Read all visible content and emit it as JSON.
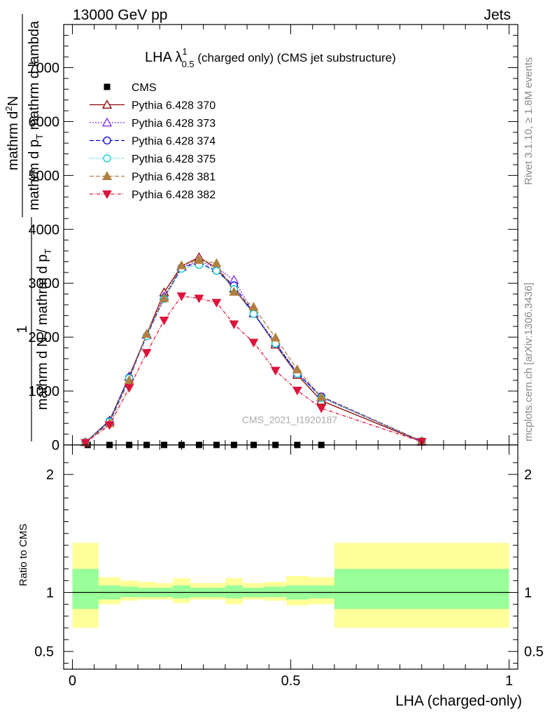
{
  "header": {
    "energy": "13000 GeV pp",
    "category": "Jets"
  },
  "side_text": {
    "rivet": "Rivet 3.1.10, ≥ 1.8M events",
    "site": "mcplots.cern.ch [arXiv:1306.3436]"
  },
  "watermark": "CMS_2021_I1920187",
  "chart_data": [
    {
      "type": "line",
      "title": {
        "main": "LHA λ",
        "sup": "1",
        "sub": "0.5",
        "rest": " (charged only) (CMS jet substructure)"
      },
      "ylabel": {
        "one": "1",
        "den": "mathrm d N / mathrm d p",
        "den_sub": "T",
        "num_top": "mathrm d",
        "num_sup": "2",
        "num_n": "N",
        "num_bottom": "mathrm d p",
        "num_bottom_sub": "T",
        "num_bottom_rest": " mathrm d lambda"
      },
      "xlim": [
        -0.02,
        1.02
      ],
      "ylim": [
        0,
        7800
      ],
      "yticks": [
        0,
        1000,
        2000,
        3000,
        4000,
        5000,
        6000,
        7000
      ],
      "ytick_labels": [
        "0",
        "1000",
        "2000",
        "3000",
        "4000",
        "5000",
        "6000",
        "7000"
      ],
      "legend_position": "top-left",
      "series": [
        {
          "name": "CMS",
          "color": "#000000",
          "marker": "square",
          "dash": "",
          "x": [
            0.035,
            0.085,
            0.13,
            0.17,
            0.21,
            0.25,
            0.29,
            0.33,
            0.37,
            0.415,
            0.465,
            0.515,
            0.57
          ],
          "y": [
            0,
            0,
            0,
            0,
            0,
            0,
            0,
            0,
            0,
            0,
            0,
            0,
            0
          ]
        },
        {
          "name": "Pythia 6.428 370",
          "color": "#8b0000",
          "marker": "triangle-open",
          "dash": "",
          "x": [
            0.03,
            0.085,
            0.13,
            0.17,
            0.21,
            0.25,
            0.29,
            0.33,
            0.37,
            0.415,
            0.465,
            0.515,
            0.57,
            0.8
          ],
          "y": [
            50,
            450,
            1270,
            2050,
            2830,
            3320,
            3480,
            3280,
            2900,
            2440,
            1860,
            1300,
            820,
            60
          ]
        },
        {
          "name": "Pythia 6.428 373",
          "color": "#8a2be2",
          "marker": "triangle-open",
          "dash": "2,2",
          "x": [
            0.03,
            0.085,
            0.13,
            0.17,
            0.21,
            0.25,
            0.29,
            0.33,
            0.37,
            0.415,
            0.465,
            0.515,
            0.57,
            0.8
          ],
          "y": [
            50,
            430,
            1260,
            2040,
            2760,
            3300,
            3410,
            3290,
            3060,
            2450,
            1900,
            1340,
            880,
            60
          ]
        },
        {
          "name": "Pythia 6.428 374",
          "color": "#0000cd",
          "marker": "circle-open",
          "dash": "6,3",
          "x": [
            0.03,
            0.085,
            0.13,
            0.17,
            0.21,
            0.25,
            0.29,
            0.33,
            0.37,
            0.415,
            0.465,
            0.515,
            0.57,
            0.8
          ],
          "y": [
            50,
            440,
            1250,
            2020,
            2720,
            3290,
            3380,
            3230,
            2960,
            2440,
            1880,
            1330,
            900,
            70
          ]
        },
        {
          "name": "Pythia 6.428 375",
          "color": "#00ced1",
          "marker": "circle-open",
          "dash": "1,2",
          "x": [
            0.03,
            0.085,
            0.13,
            0.17,
            0.21,
            0.25,
            0.29,
            0.33,
            0.37,
            0.415,
            0.465,
            0.515,
            0.57,
            0.8
          ],
          "y": [
            50,
            430,
            1240,
            2020,
            2710,
            3270,
            3340,
            3230,
            2890,
            2430,
            1880,
            1320,
            870,
            70
          ]
        },
        {
          "name": "Pythia 6.428 381",
          "color": "#b08040",
          "marker": "triangle-filled",
          "dash": "6,3",
          "x": [
            0.03,
            0.085,
            0.13,
            0.17,
            0.21,
            0.25,
            0.29,
            0.33,
            0.37,
            0.415,
            0.465,
            0.515,
            0.57,
            0.8
          ],
          "y": [
            50,
            400,
            1200,
            2060,
            2720,
            3330,
            3430,
            3370,
            2840,
            2560,
            1990,
            1400,
            890,
            70
          ]
        },
        {
          "name": "Pythia 6.428 382",
          "color": "#dc143c",
          "marker": "triangle-down-filled",
          "dash": "5,2,1,2",
          "x": [
            0.03,
            0.085,
            0.13,
            0.17,
            0.21,
            0.25,
            0.29,
            0.33,
            0.37,
            0.415,
            0.465,
            0.515,
            0.57,
            0.8
          ],
          "y": [
            40,
            370,
            1060,
            1710,
            2310,
            2760,
            2720,
            2640,
            2240,
            1900,
            1380,
            1010,
            680,
            60
          ]
        }
      ]
    },
    {
      "type": "area",
      "ylabel": "Ratio to CMS",
      "xlabel": "LHA (charged-only)",
      "xlim": [
        -0.02,
        1.02
      ],
      "ylim": [
        0.35,
        2.25
      ],
      "yticks": [
        0.5,
        1,
        2
      ],
      "ytick_labels": [
        "0.5",
        "1",
        "2"
      ],
      "xticks": [
        0,
        0.5,
        1
      ],
      "xtick_labels": [
        "0",
        "0.5",
        "1"
      ],
      "reference_line": 1,
      "bands": {
        "bins": [
          [
            0,
            0.06
          ],
          [
            0.06,
            0.11
          ],
          [
            0.11,
            0.15
          ],
          [
            0.15,
            0.19
          ],
          [
            0.19,
            0.23
          ],
          [
            0.23,
            0.27
          ],
          [
            0.27,
            0.31
          ],
          [
            0.31,
            0.35
          ],
          [
            0.35,
            0.39
          ],
          [
            0.39,
            0.44
          ],
          [
            0.44,
            0.49
          ],
          [
            0.49,
            0.54
          ],
          [
            0.54,
            0.6
          ],
          [
            0.6,
            1.0
          ]
        ],
        "yellow": [
          [
            0.7,
            1.42
          ],
          [
            0.9,
            1.13
          ],
          [
            0.93,
            1.1
          ],
          [
            0.94,
            1.09
          ],
          [
            0.94,
            1.08
          ],
          [
            0.91,
            1.12
          ],
          [
            0.94,
            1.08
          ],
          [
            0.94,
            1.08
          ],
          [
            0.9,
            1.12
          ],
          [
            0.94,
            1.08
          ],
          [
            0.93,
            1.09
          ],
          [
            0.89,
            1.14
          ],
          [
            0.9,
            1.13
          ],
          [
            0.7,
            1.42
          ]
        ],
        "green": [
          [
            0.86,
            1.2
          ],
          [
            0.94,
            1.06
          ],
          [
            0.96,
            1.05
          ],
          [
            0.96,
            1.04
          ],
          [
            0.96,
            1.04
          ],
          [
            0.95,
            1.06
          ],
          [
            0.96,
            1.04
          ],
          [
            0.96,
            1.04
          ],
          [
            0.95,
            1.06
          ],
          [
            0.96,
            1.04
          ],
          [
            0.96,
            1.05
          ],
          [
            0.94,
            1.06
          ],
          [
            0.95,
            1.06
          ],
          [
            0.86,
            1.2
          ]
        ],
        "yellow_color": "#ffff99",
        "green_color": "#99ff99"
      }
    }
  ]
}
